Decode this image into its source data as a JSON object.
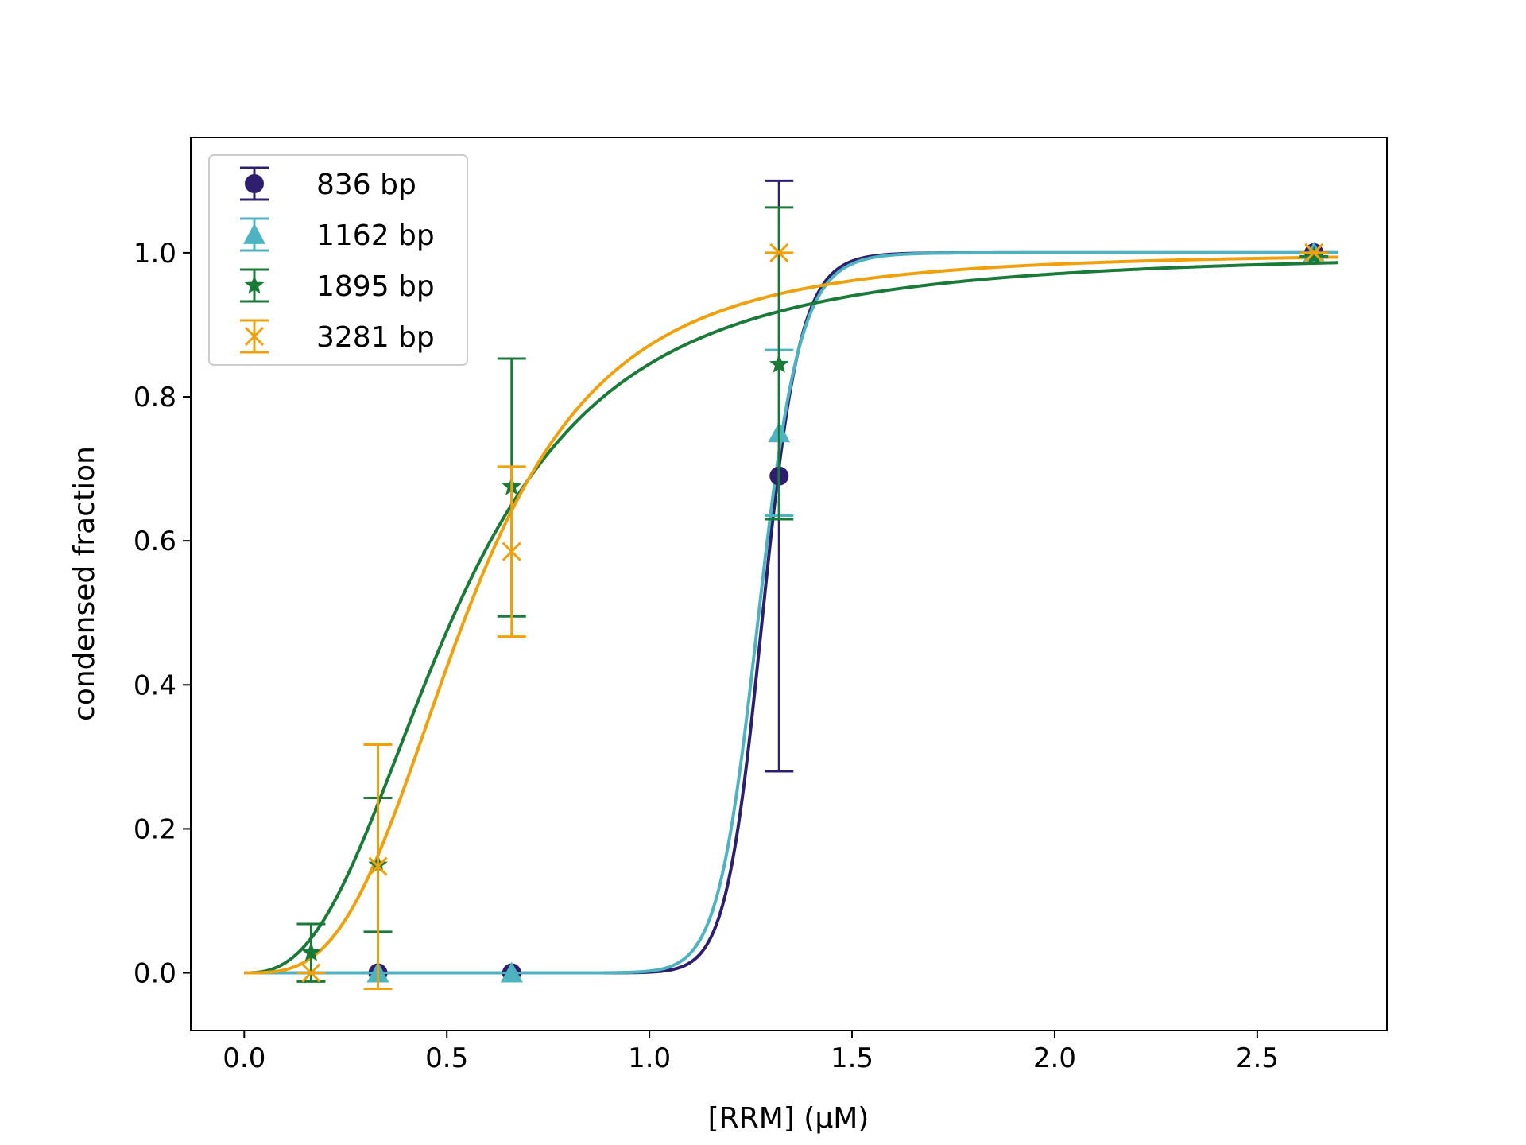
{
  "chart_data": {
    "type": "scatter",
    "title": "",
    "xlabel": "[RRM] (µM)",
    "ylabel": "condensed fraction",
    "xlim": [
      -0.132,
      2.82
    ],
    "ylim": [
      -0.08,
      1.16
    ],
    "xticks": [
      "0.0",
      "0.5",
      "1.0",
      "1.5",
      "2.0",
      "2.5"
    ],
    "yticks": [
      "0.0",
      "0.2",
      "0.4",
      "0.6",
      "0.8",
      "1.0"
    ],
    "grid": false,
    "legend_position": "top-left",
    "series": [
      {
        "name": "836 bp",
        "color": "#2e1f6e",
        "marker": "circle",
        "x": [
          0.33,
          0.66,
          1.32,
          2.64
        ],
        "y": [
          0.0,
          0.0,
          0.69,
          1.0
        ],
        "yerr_low": [
          0.0,
          0.0,
          0.28,
          1.0
        ],
        "yerr_high": [
          0.0,
          0.0,
          1.1,
          1.0
        ],
        "fit_ec50": 1.28,
        "fit_hill": 28
      },
      {
        "name": "1162 bp",
        "color": "#4db3c0",
        "marker": "triangle",
        "x": [
          0.33,
          0.66,
          1.32,
          2.64
        ],
        "y": [
          0.0,
          0.0,
          0.75,
          1.0
        ],
        "yerr_low": [
          0.0,
          0.0,
          0.635,
          1.0
        ],
        "yerr_high": [
          0.0,
          0.0,
          0.865,
          1.0
        ],
        "fit_ec50": 1.27,
        "fit_hill": 25
      },
      {
        "name": "1895 bp",
        "color": "#1a7a38",
        "marker": "star",
        "x": [
          0.165,
          0.33,
          0.66,
          1.32,
          2.64
        ],
        "y": [
          0.028,
          0.15,
          0.675,
          0.845,
          0.995
        ],
        "yerr_low": [
          -0.012,
          0.057,
          0.495,
          0.63,
          0.995
        ],
        "yerr_high": [
          0.068,
          0.243,
          0.853,
          1.063,
          0.995
        ],
        "fit_ec50": 0.52,
        "fit_hill": 2.6
      },
      {
        "name": "3281 bp",
        "color": "#f0a00a",
        "marker": "x",
        "x": [
          0.165,
          0.33,
          0.66,
          1.32,
          2.64
        ],
        "y": [
          0.0,
          0.148,
          0.585,
          1.0,
          1.0
        ],
        "yerr_low": [
          0.0,
          -0.022,
          0.467,
          1.0,
          1.0
        ],
        "yerr_high": [
          0.0,
          0.317,
          0.703,
          1.0,
          1.0
        ],
        "fit_ec50": 0.55,
        "fit_hill": 3.2
      }
    ]
  }
}
